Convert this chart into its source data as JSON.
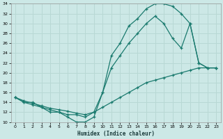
{
  "xlabel": "Humidex (Indice chaleur)",
  "bg_color": "#cce8e6",
  "grid_color": "#b8d8d4",
  "line_color": "#1a7a6e",
  "line1_x": [
    0,
    1,
    2,
    3,
    4,
    5,
    6,
    7,
    8,
    9,
    10,
    11,
    12,
    13,
    14,
    15,
    16,
    17,
    18,
    19,
    20,
    21,
    22,
    23
  ],
  "line1_y": [
    15,
    14,
    14,
    13,
    12,
    12,
    11,
    10,
    10,
    11,
    16,
    23.5,
    26,
    29.5,
    31,
    33,
    34,
    34,
    33.5,
    32,
    30,
    22,
    21,
    21
  ],
  "line2_x": [
    0,
    1,
    2,
    3,
    4,
    5,
    6,
    7,
    8,
    9,
    10,
    11,
    12,
    13,
    14,
    15,
    16,
    17,
    18,
    19,
    20,
    21,
    22,
    23
  ],
  "line2_y": [
    15,
    14,
    13.5,
    13,
    12.5,
    12,
    11.5,
    11.5,
    11,
    12,
    16,
    21,
    23.5,
    26,
    28,
    30,
    31.5,
    30,
    27,
    25,
    30,
    22,
    21,
    21
  ],
  "line3_x": [
    0,
    1,
    2,
    3,
    4,
    5,
    6,
    7,
    8,
    9,
    10,
    11,
    12,
    13,
    14,
    15,
    16,
    17,
    18,
    19,
    20,
    21,
    22,
    23
  ],
  "line3_y": [
    15,
    14.3,
    13.8,
    13.3,
    12.8,
    12.5,
    12.2,
    11.8,
    11.5,
    12,
    13,
    14,
    15,
    16,
    17,
    18,
    18.5,
    19,
    19.5,
    20,
    20.5,
    21,
    21,
    21
  ],
  "ylim": [
    10,
    34
  ],
  "xlim": [
    -0.5,
    23.5
  ],
  "yticks": [
    10,
    12,
    14,
    16,
    18,
    20,
    22,
    24,
    26,
    28,
    30,
    32,
    34
  ],
  "xticks": [
    0,
    1,
    2,
    3,
    4,
    5,
    6,
    7,
    8,
    9,
    10,
    11,
    12,
    13,
    14,
    15,
    16,
    17,
    18,
    19,
    20,
    21,
    22,
    23
  ]
}
